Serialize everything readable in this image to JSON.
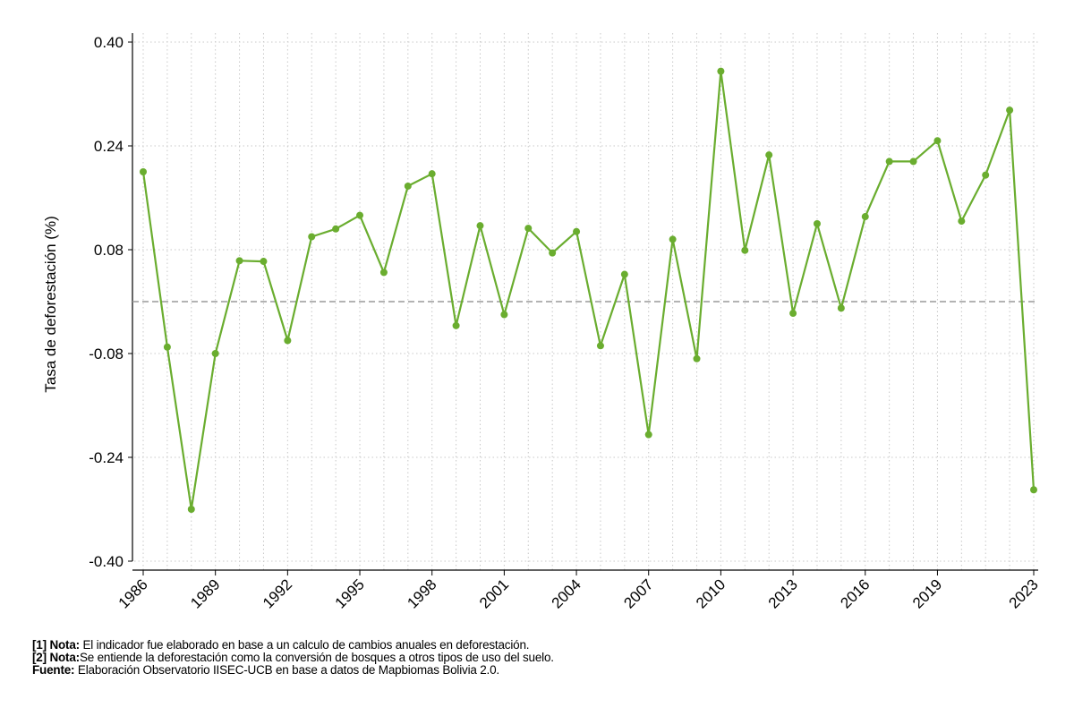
{
  "chart_data": {
    "type": "line",
    "title": "",
    "xlabel": "",
    "ylabel": "Tasa de deforestación (%)",
    "ylim": [
      -0.4,
      0.4
    ],
    "xlim": [
      1986,
      2023
    ],
    "yticks": [
      "0.40",
      "0.24",
      "0.08",
      "-0.08",
      "-0.24",
      "-0.40"
    ],
    "ytick_values": [
      0.4,
      0.24,
      0.08,
      -0.08,
      -0.24,
      -0.4
    ],
    "xticks": [
      "1986",
      "1989",
      "1992",
      "1995",
      "1998",
      "2001",
      "2004",
      "2007",
      "2010",
      "2013",
      "2016",
      "2019",
      "2023"
    ],
    "reference_line": 0.0,
    "grid": true,
    "line_color": "#6aad2f",
    "reference_color": "#9a9a9a",
    "series": [
      {
        "x": [
          1986,
          1987,
          1988,
          1989,
          1990,
          1991,
          1992,
          1993,
          1994,
          1995,
          1996,
          1997,
          1998,
          1999,
          2000,
          2001,
          2002,
          2003,
          2004,
          2005,
          2006,
          2007,
          2008,
          2009,
          2010,
          2011,
          2012,
          2013,
          2014,
          2015,
          2016,
          2017,
          2018,
          2019,
          2020,
          2021,
          2022,
          2023
        ],
        "y": [
          0.2,
          -0.07,
          -0.32,
          -0.08,
          0.063,
          0.062,
          -0.06,
          0.1,
          0.112,
          0.133,
          0.045,
          0.178,
          0.197,
          -0.037,
          0.117,
          -0.02,
          0.113,
          0.075,
          0.108,
          -0.068,
          0.042,
          -0.205,
          0.096,
          -0.088,
          0.355,
          0.079,
          0.226,
          -0.018,
          0.12,
          -0.01,
          0.131,
          0.216,
          0.216,
          0.248,
          0.124,
          0.195,
          0.295,
          -0.29
        ]
      }
    ]
  },
  "notes": {
    "n1_label": "[1] Nota:",
    "n1_text": " El indicador fue elaborado en base a un calculo de cambios anuales en deforestación.",
    "n2_label": "[2] Nota:",
    "n2_text": "Se entiende la deforestación como la conversión de bosques a otros tipos de uso del suelo.",
    "n3_label": "Fuente:",
    "n3_text": " Elaboración Observatorio IISEC-UCB en base a datos de Mapbiomas Bolivia 2.0."
  }
}
